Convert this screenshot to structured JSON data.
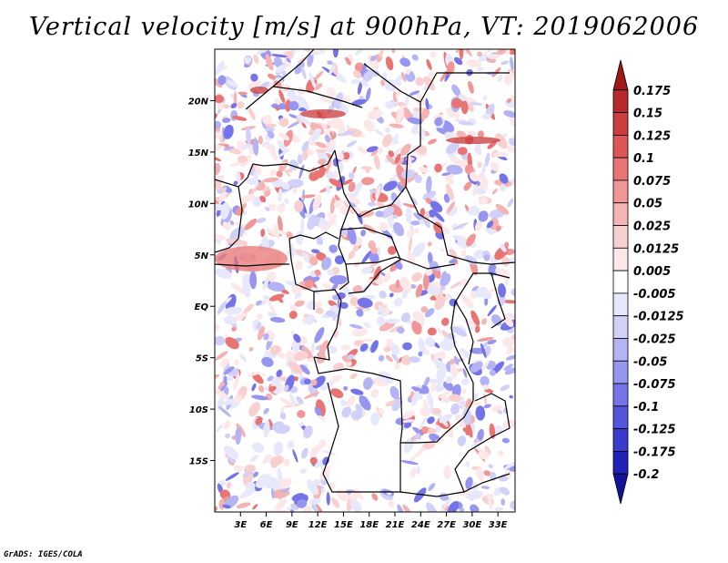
{
  "title": "Vertical velocity [m/s] at 900hPa, VT: 2019062006",
  "credit": "GrADS: IGES/COLA",
  "map": {
    "lon_range": [
      0,
      35
    ],
    "lat_range": [
      -20,
      25
    ],
    "lon_ticks": [
      "3E",
      "6E",
      "9E",
      "12E",
      "15E",
      "18E",
      "21E",
      "24E",
      "27E",
      "30E",
      "33E"
    ],
    "lon_values": [
      3,
      6,
      9,
      12,
      15,
      18,
      21,
      24,
      27,
      30,
      33
    ],
    "lat_ticks": [
      "20N",
      "15N",
      "10N",
      "5N",
      "EQ",
      "5S",
      "10S",
      "15S"
    ],
    "lat_values": [
      20,
      15,
      10,
      5,
      0,
      -5,
      -10,
      -15
    ]
  },
  "colorbar": {
    "labels": [
      "0.175",
      "0.15",
      "0.125",
      "0.1",
      "0.075",
      "0.05",
      "0.025",
      "0.0125",
      "0.005",
      "-0.005",
      "-0.0125",
      "-0.025",
      "-0.05",
      "-0.075",
      "-0.1",
      "-0.125",
      "-0.175",
      "-0.2"
    ],
    "colors": [
      "#a01818",
      "#b82a2a",
      "#cc3e3e",
      "#dd5656",
      "#e87474",
      "#f09696",
      "#f5b4b4",
      "#f9d0d0",
      "#fce8e8",
      "#ffffff",
      "#e8e8fc",
      "#d0d0f8",
      "#b4b4f4",
      "#9696f0",
      "#7474e8",
      "#5656dc",
      "#3a3acc",
      "#2222b8",
      "#12129a"
    ]
  },
  "colors": {
    "positive": "#e04848",
    "negative": "#4848e0",
    "boundaries": "#000000"
  }
}
